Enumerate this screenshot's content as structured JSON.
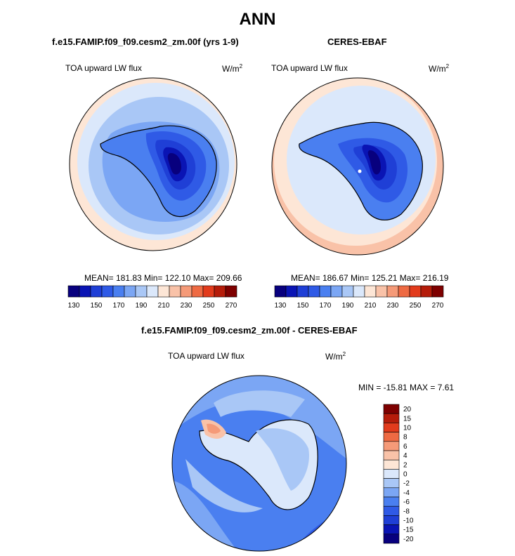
{
  "page": {
    "title": "ANN"
  },
  "colors": {
    "c130": "#08007e",
    "c140": "#0a14b4",
    "c150": "#1f3fd6",
    "c160": "#2f5ae6",
    "c170": "#4a7ff0",
    "c180": "#7ba6f4",
    "c190": "#a9c7f6",
    "c200": "#dbe8fb",
    "c210": "#fde6d6",
    "c220": "#f9c2a8",
    "c230": "#f59a78",
    "c240": "#ee6a43",
    "c250": "#e23b1c",
    "c260": "#b51c0a",
    "c270": "#7e0000",
    "land_outline": "#000000",
    "background": "#ffffff"
  },
  "panels": [
    {
      "id": "model",
      "subtitle": "f.e15.FAMIP.f09_f09.cesm2_zm.00f (yrs 1-9)",
      "variable": "TOA upward LW flux",
      "units_base": "W/m",
      "units_exp": "2",
      "stats": "MEAN= 181.83  Min= 122.10  Max= 209.66"
    },
    {
      "id": "obs",
      "subtitle": "CERES-EBAF",
      "variable": "TOA upward LW flux",
      "units_base": "W/m",
      "units_exp": "2",
      "stats": "MEAN= 186.67  Min= 125.21  Max= 216.19"
    },
    {
      "id": "diff",
      "subtitle": "f.e15.FAMIP.f09_f09.cesm2_zm.00f - CERES-EBAF",
      "variable": "TOA upward LW flux",
      "units_base": "W/m",
      "units_exp": "2",
      "stats": "MIN = -15.81 MAX =  7.61"
    }
  ],
  "chart_data": [
    {
      "type": "heatmap",
      "name": "model polar map",
      "projection": "south polar stereographic",
      "title": "f.e15.FAMIP.f09_f09.cesm2_zm.00f (yrs 1-9)",
      "variable": "TOA upward LW flux",
      "units": "W/m^2",
      "mean": 181.83,
      "min": 122.1,
      "max": 209.66,
      "colorbar": {
        "orientation": "horizontal",
        "levels": [
          130,
          140,
          150,
          160,
          170,
          180,
          190,
          200,
          210,
          220,
          230,
          240,
          250,
          260,
          270
        ],
        "tick_labels": [
          "130",
          "150",
          "170",
          "190",
          "210",
          "230",
          "250",
          "270"
        ]
      }
    },
    {
      "type": "heatmap",
      "name": "observation polar map",
      "projection": "south polar stereographic",
      "title": "CERES-EBAF",
      "variable": "TOA upward LW flux",
      "units": "W/m^2",
      "mean": 186.67,
      "min": 125.21,
      "max": 216.19,
      "colorbar": {
        "orientation": "horizontal",
        "levels": [
          130,
          140,
          150,
          160,
          170,
          180,
          190,
          200,
          210,
          220,
          230,
          240,
          250,
          260,
          270
        ],
        "tick_labels": [
          "130",
          "150",
          "170",
          "190",
          "210",
          "230",
          "250",
          "270"
        ]
      }
    },
    {
      "type": "heatmap",
      "name": "difference polar map",
      "projection": "south polar stereographic",
      "title": "f.e15.FAMIP.f09_f09.cesm2_zm.00f - CERES-EBAF",
      "variable": "TOA upward LW flux",
      "units": "W/m^2",
      "min": -15.81,
      "max": 7.61,
      "colorbar": {
        "orientation": "vertical",
        "levels": [
          20,
          15,
          10,
          8,
          6,
          4,
          2,
          0,
          -2,
          -4,
          -6,
          -8,
          -10,
          -15,
          -20
        ],
        "tick_labels": [
          "20",
          "15",
          "10",
          "8",
          "6",
          "4",
          "2",
          "0",
          "-2",
          "-4",
          "-6",
          "-8",
          "-10",
          "-15",
          "-20"
        ],
        "colors": [
          "#7e0000",
          "#b51c0a",
          "#e23b1c",
          "#ee6a43",
          "#f59a78",
          "#f9c2a8",
          "#fde6d6",
          "#dbe8fb",
          "#a9c7f6",
          "#7ba6f4",
          "#4a7ff0",
          "#2f5ae6",
          "#1f3fd6",
          "#0a14b4",
          "#08007e"
        ]
      }
    }
  ]
}
